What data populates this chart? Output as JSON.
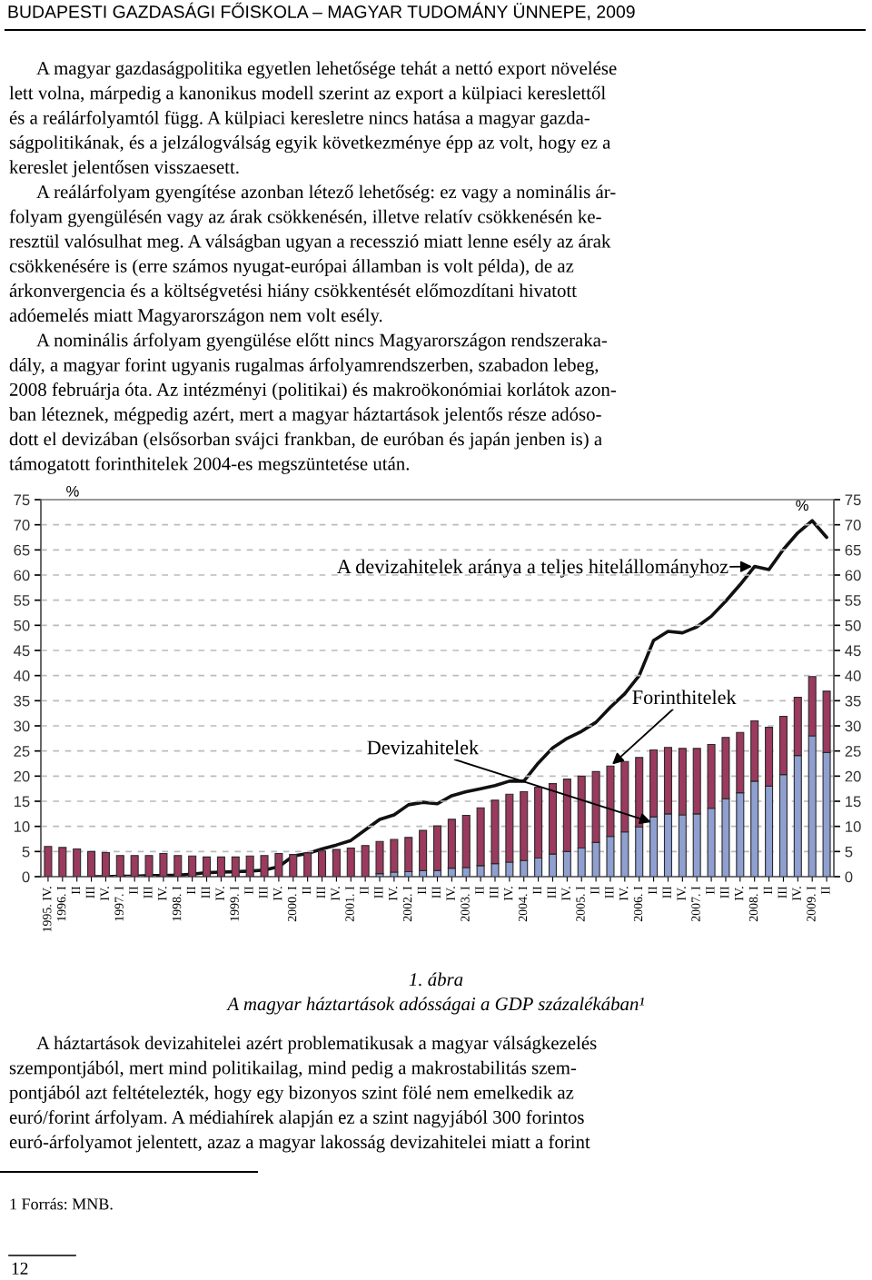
{
  "chart_data": {
    "type": "bar",
    "stacked": true,
    "title": "1. ábra",
    "subtitle": "A magyar háztartások adósságai a GDP százalékában¹",
    "ylabel": "%",
    "y2label": "%",
    "categories": [
      "1995. IV.",
      "1996. I",
      "II",
      "III",
      "IV.",
      "1997. I",
      "II",
      "III",
      "IV.",
      "1998. I",
      "II",
      "III",
      "IV.",
      "1999. I",
      "II",
      "III",
      "IV.",
      "2000. I",
      "II",
      "III",
      "IV.",
      "2001. I",
      "II",
      "III",
      "IV.",
      "2002. I",
      "II",
      "III",
      "IV.",
      "2003. I",
      "II",
      "III",
      "IV.",
      "2004. I",
      "II",
      "III",
      "IV.",
      "2005. I",
      "II",
      "III",
      "IV.",
      "2006. I",
      "II",
      "III",
      "IV.",
      "2007. I",
      "II",
      "III",
      "IV.",
      "2008. I",
      "II",
      "III",
      "IV.",
      "2009. I",
      "II"
    ],
    "series": [
      {
        "name": "Devizahitelek",
        "color": "#8f9fd0",
        "values": [
          0,
          0,
          0,
          0,
          0,
          0,
          0,
          0,
          0,
          0,
          0,
          0,
          0,
          0,
          0,
          0,
          0,
          null,
          null,
          null,
          null,
          null,
          null,
          0.6,
          0.9,
          1.0,
          1.2,
          1.2,
          1.7,
          1.8,
          2.2,
          2.6,
          2.9,
          3.2,
          3.7,
          4.5,
          5.0,
          5.7,
          6.8,
          8.0,
          8.9,
          9.9,
          11.9,
          12.5,
          12.3,
          12.5,
          13.6,
          15.5,
          16.7,
          19.0,
          18.0,
          20.3,
          24.1,
          28.0,
          24.7
        ]
      },
      {
        "name": "Forinthitelek",
        "color": "#9b3a5e",
        "values": [
          6.0,
          5.8,
          5.5,
          5.0,
          4.8,
          4.2,
          4.2,
          4.2,
          4.6,
          4.2,
          4.1,
          3.9,
          3.9,
          3.9,
          4.1,
          4.2,
          4.6,
          4.4,
          4.7,
          5.1,
          5.4,
          5.7,
          6.2,
          6.4,
          6.5,
          6.8,
          8.0,
          8.9,
          9.7,
          10.4,
          11.5,
          12.6,
          13.5,
          13.7,
          14.1,
          14.0,
          14.4,
          14.3,
          14.1,
          14.0,
          14.0,
          13.8,
          13.3,
          13.2,
          13.2,
          13.0,
          12.7,
          12.2,
          12.0,
          12.0,
          11.7,
          11.6,
          11.6,
          11.8,
          12.2
        ]
      },
      {
        "name": "A devizahitelek aránya a teljes hitelállományhoz",
        "type": "line",
        "axis": "y2",
        "color": "#111111",
        "values": [
          null,
          null,
          null,
          0.0,
          0.0,
          0.1,
          0.1,
          0.2,
          0.2,
          0.3,
          0.5,
          0.8,
          0.9,
          1.0,
          1.1,
          1.3,
          2.0,
          4.1,
          4.6,
          5.5,
          6.3,
          7.2,
          9.3,
          11.4,
          12.3,
          14.3,
          14.8,
          14.5,
          16.1,
          16.9,
          17.5,
          18.1,
          19.0,
          19.0,
          22.6,
          25.6,
          27.5,
          28.9,
          30.7,
          33.7,
          36.4,
          40.0,
          47.0,
          48.8,
          48.5,
          49.7,
          51.8,
          54.8,
          58.1,
          61.7,
          61.1,
          65.1,
          68.4,
          70.8,
          67.5
        ]
      }
    ],
    "ylim": [
      0,
      75
    ],
    "yticks": [
      0,
      5,
      10,
      15,
      20,
      25,
      30,
      35,
      40,
      45,
      50,
      55,
      60,
      65,
      70,
      75
    ],
    "y2lim": [
      0,
      75
    ],
    "y2ticks": [
      0,
      5,
      10,
      15,
      20,
      25,
      30,
      35,
      40,
      45,
      50,
      55,
      60,
      65,
      70,
      75
    ],
    "grid": "y",
    "legend": false,
    "annotations": [
      "BUDAPESTI GAZDASÁGI FŐISKOLA – MAGYAR TUDOMÁNY ÜNNEPE, 2009",
      "A magyar gazdaságpolitika egyetlen lehetősége tehát a nettó export növelése\nlett volna, márpedig a kanonikus modell szerint az export a külpiaci kereslettől\nés a reálárfolyamtól függ. A külpiaci keresletre nincs hatása a magyar gazda-\nságpolitikának, és a jelzálogválság egyik következménye épp az volt, hogy ez a\nkereslet jelentősen visszaesett.",
      "A reálárfolyam gyengítése azonban létező lehetőség: ez vagy a nominális ár-\nfolyam gyengülésén vagy az árak csökkenésén, illetve relatív csökkenésén ke-\nresztül valósulhat meg. A válságban ugyan a recesszió miatt lenne esély az árak\ncsökkenésére is (erre számos nyugat-európai államban is volt példa), de az\nárkonvergencia és a költségvetési hiány csökkentését előmozdítani hivatott\nadóemelés miatt Magyarországon nem volt esély.",
      "A nominális árfolyam gyengülése előtt nincs Magyarországon rendszeraka-\ndály, a magyar forint ugyanis rugalmas árfolyamrendszerben, szabadon lebeg,\n2008 februárja óta. Az intézményi (politikai) és makroökonómiai korlátok azon-\nban léteznek, mégpedig azért, mert a magyar háztartások jelentős része adóso-\ndott el devizában (elsősorban svájci frankban, de euróban és japán jenben is) a\ntámogatott forinthitelek 2004-es megszüntetése után.",
      "A háztartások devizahitelei azért problematikusak a magyar válságkezelés\nszempontjából, mert mind politikailag, mind pedig a makrostabilitás szem-\npontjából azt feltételezték, hogy egy bizonyos szint fölé nem emelkedik az\neuró/forint árfolyam. A médiahírek alapján ez a szint nagyjából 300 forintos\neuró-árfolyamot jelentett, azaz a magyar lakosság devizahitelei miatt a forint",
      "1 Forrás: MNB.",
      "12"
    ]
  }
}
